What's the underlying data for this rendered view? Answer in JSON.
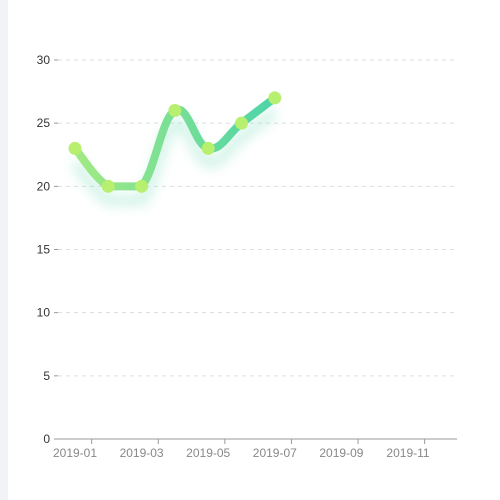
{
  "colors": {
    "background": "#ffffff",
    "side_strip": "#f2f3f7",
    "axis": "#999999",
    "grid": "#d9dde3",
    "y_label": "#333333",
    "x_label": "#888888",
    "line_start": "#a2ea84",
    "line_end": "#4dd4a8",
    "marker": "#b7ef6f",
    "shadow": "#8fe3c4"
  },
  "chart_data": {
    "type": "line",
    "title": "",
    "xlabel": "",
    "ylabel": "",
    "x_ticks": [
      "2019-01",
      "2019-03",
      "2019-05",
      "2019-07",
      "2019-09",
      "2019-11"
    ],
    "x_range": [
      "2019-01",
      "2019-12"
    ],
    "y_ticks": [
      "0",
      "5",
      "10",
      "15",
      "20",
      "25",
      "30"
    ],
    "ylim": [
      0,
      30
    ],
    "grid": true,
    "legend": "none",
    "smooth": true,
    "series": [
      {
        "x": [
          "2019-01",
          "2019-02",
          "2019-03",
          "2019-04",
          "2019-05",
          "2019-06",
          "2019-07"
        ],
        "values": [
          23,
          20,
          20,
          26,
          23,
          25,
          27
        ]
      }
    ]
  }
}
